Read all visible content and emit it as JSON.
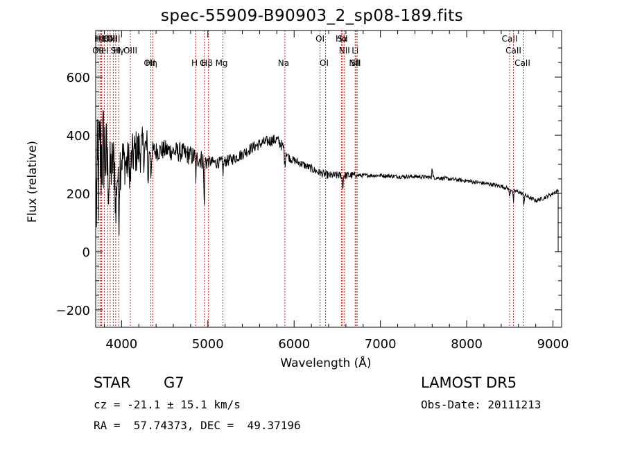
{
  "title": "spec-55909-B90903_2_sp08-189.fits",
  "info": {
    "obj_class": "STAR",
    "subclass": "G7",
    "survey": "LAMOST DR5",
    "cz": "cz = -21.1 ± 15.1 km/s",
    "obs_date": "Obs-Date: 20111213",
    "coords": "RA =  57.74373, DEC =  49.37196"
  },
  "colors": {
    "line_marker": "#cc2222",
    "spectrum": "#000000",
    "axes": "#000000"
  },
  "chart_data": {
    "type": "line",
    "xlabel": "Wavelength (Å)",
    "ylabel": "Flux (relative)",
    "xlim": [
      3700,
      9100
    ],
    "ylim": [
      -260,
      760
    ],
    "xticks": [
      4000,
      5000,
      6000,
      7000,
      8000,
      9000
    ],
    "yticks": [
      -200,
      0,
      200,
      400,
      600
    ],
    "grid": false,
    "legend": "none",
    "spectrum_anchors": [
      [
        3700,
        150
      ],
      [
        3750,
        320
      ],
      [
        3800,
        360
      ],
      [
        3850,
        250
      ],
      [
        3900,
        310
      ],
      [
        3950,
        260
      ],
      [
        4000,
        330
      ],
      [
        4050,
        300
      ],
      [
        4100,
        310
      ],
      [
        4150,
        340
      ],
      [
        4200,
        350
      ],
      [
        4300,
        350
      ],
      [
        4400,
        345
      ],
      [
        4500,
        350
      ],
      [
        4600,
        345
      ],
      [
        4700,
        340
      ],
      [
        4800,
        330
      ],
      [
        4900,
        320
      ],
      [
        5000,
        310
      ],
      [
        5100,
        305
      ],
      [
        5200,
        310
      ],
      [
        5300,
        320
      ],
      [
        5400,
        335
      ],
      [
        5500,
        355
      ],
      [
        5600,
        370
      ],
      [
        5700,
        380
      ],
      [
        5800,
        385
      ],
      [
        5870,
        360
      ],
      [
        5950,
        320
      ],
      [
        6100,
        300
      ],
      [
        6200,
        285
      ],
      [
        6300,
        270
      ],
      [
        6400,
        262
      ],
      [
        6500,
        262
      ],
      [
        6600,
        262
      ],
      [
        6800,
        262
      ],
      [
        7000,
        262
      ],
      [
        7200,
        258
      ],
      [
        7400,
        258
      ],
      [
        7600,
        255
      ],
      [
        7800,
        250
      ],
      [
        8000,
        243
      ],
      [
        8200,
        235
      ],
      [
        8400,
        225
      ],
      [
        8600,
        205
      ],
      [
        8700,
        190
      ],
      [
        8800,
        175
      ],
      [
        8900,
        185
      ],
      [
        9000,
        200
      ],
      [
        9060,
        210
      ]
    ],
    "absorption_features": [
      {
        "x": 3933,
        "depth": 180
      },
      {
        "x": 3968,
        "depth": 170
      },
      {
        "x": 4102,
        "depth": 80
      },
      {
        "x": 4308,
        "depth": 120
      },
      {
        "x": 4340,
        "depth": 90
      },
      {
        "x": 4861,
        "depth": 70
      },
      {
        "x": 4958,
        "depth": 160
      },
      {
        "x": 5175,
        "depth": 40
      },
      {
        "x": 5893,
        "depth": 60
      },
      {
        "x": 6563,
        "depth": 45
      },
      {
        "x": 8498,
        "depth": 30
      },
      {
        "x": 8542,
        "depth": 40
      },
      {
        "x": 8662,
        "depth": 35
      }
    ],
    "emission_features": [
      {
        "x": 7600,
        "height": 35
      }
    ],
    "line_markers": [
      {
        "label": "H8",
        "x": 3750,
        "row": 0
      },
      {
        "label": "Hε",
        "x": 3763,
        "row": 0
      },
      {
        "label": "K",
        "x": 3800,
        "row": 0
      },
      {
        "label": "Hδ",
        "x": 3840,
        "row": 0
      },
      {
        "label": "OIII",
        "x": 3868,
        "row": 0
      },
      {
        "label": "OIII",
        "x": 3905,
        "row": 0
      },
      {
        "label": "OII",
        "x": 3727,
        "row": 1
      },
      {
        "label": "HeI",
        "x": 3770,
        "row": 1
      },
      {
        "label": "SII",
        "x": 3932,
        "row": 1
      },
      {
        "label": "Hγ",
        "x": 3968,
        "row": 1
      },
      {
        "label": "OIII",
        "x": 4102,
        "row": 1
      },
      {
        "label": "OII",
        "x": 4340,
        "row": 2
      },
      {
        "label": "Hη",
        "x": 4363,
        "row": 2
      },
      {
        "label": "H",
        "x": 4861,
        "row": 2
      },
      {
        "label": "G",
        "x": 4959,
        "row": 2
      },
      {
        "label": "Hβ",
        "x": 5007,
        "row": 2
      },
      {
        "label": "Mg",
        "x": 5175,
        "row": 2
      },
      {
        "label": "Na",
        "x": 5893,
        "row": 2
      },
      {
        "label": "OI",
        "x": 6300,
        "row": 0
      },
      {
        "label": "OI",
        "x": 6364,
        "row": 2
      },
      {
        "label": "Hα",
        "x": 6548,
        "row": 0
      },
      {
        "label": "SII",
        "x": 6563,
        "row": 0
      },
      {
        "label": "NII",
        "x": 6583,
        "row": 1
      },
      {
        "label": "Li",
        "x": 6707,
        "row": 1
      },
      {
        "label": "NII",
        "x": 6717,
        "row": 2
      },
      {
        "label": "SII",
        "x": 6731,
        "row": 2
      },
      {
        "label": "CaII",
        "x": 8498,
        "row": 0
      },
      {
        "label": "CaII",
        "x": 8542,
        "row": 1
      },
      {
        "label": "CaII",
        "x": 8662,
        "row": 2
      }
    ]
  }
}
